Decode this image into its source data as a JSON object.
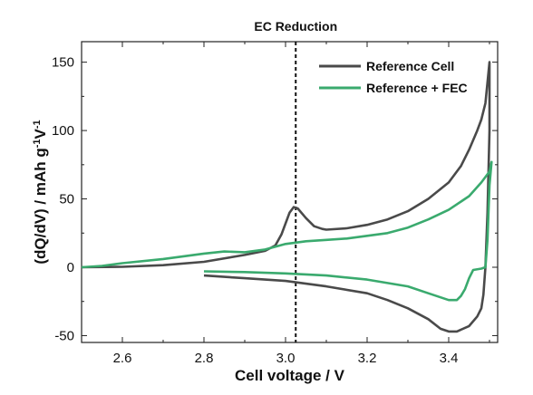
{
  "chart_data": {
    "type": "line",
    "xlabel": "Cell voltage / V",
    "ylabel_parts": [
      "(dQ/dV) / mAh g",
      "-1",
      "V",
      "-1"
    ],
    "xlim": [
      2.5,
      3.52
    ],
    "ylim": [
      -55,
      165
    ],
    "xticks": [
      2.6,
      2.8,
      3.0,
      3.2,
      3.4
    ],
    "yticks": [
      -50,
      0,
      50,
      100,
      150
    ],
    "grid": false,
    "legend_position": "top-right",
    "colors": {
      "reference": "#4a4a4a",
      "fec": "#3aaa6e"
    },
    "annotations": [
      {
        "text": "EC Reduction",
        "x": 3.025,
        "style": "dashed-vertical-line"
      }
    ],
    "series": [
      {
        "name": "Reference Cell",
        "color": "#4a4a4a",
        "points": [
          [
            2.5,
            0
          ],
          [
            2.6,
            0.3
          ],
          [
            2.7,
            1.5
          ],
          [
            2.8,
            4
          ],
          [
            2.9,
            9
          ],
          [
            2.95,
            12
          ],
          [
            2.975,
            16
          ],
          [
            2.99,
            24
          ],
          [
            3.0,
            32
          ],
          [
            3.01,
            40
          ],
          [
            3.02,
            44
          ],
          [
            3.03,
            43
          ],
          [
            3.05,
            36
          ],
          [
            3.07,
            30
          ],
          [
            3.09,
            28
          ],
          [
            3.1,
            27.5
          ],
          [
            3.15,
            28.5
          ],
          [
            3.2,
            31
          ],
          [
            3.25,
            35
          ],
          [
            3.3,
            41
          ],
          [
            3.35,
            50
          ],
          [
            3.4,
            62
          ],
          [
            3.43,
            74
          ],
          [
            3.45,
            86
          ],
          [
            3.47,
            100
          ],
          [
            3.48,
            108
          ],
          [
            3.49,
            120
          ],
          [
            3.5,
            150
          ],
          [
            3.5,
            100
          ],
          [
            3.495,
            40
          ],
          [
            3.49,
            0
          ],
          [
            3.485,
            -20
          ],
          [
            3.48,
            -30
          ],
          [
            3.47,
            -36
          ],
          [
            3.45,
            -43
          ],
          [
            3.42,
            -47
          ],
          [
            3.4,
            -47
          ],
          [
            3.38,
            -45
          ],
          [
            3.35,
            -38
          ],
          [
            3.3,
            -30
          ],
          [
            3.25,
            -24
          ],
          [
            3.2,
            -19
          ],
          [
            3.1,
            -14
          ],
          [
            3.0,
            -10
          ],
          [
            2.9,
            -8
          ],
          [
            2.8,
            -6
          ]
        ]
      },
      {
        "name": "Reference + FEC",
        "color": "#3aaa6e",
        "points": [
          [
            2.5,
            0
          ],
          [
            2.55,
            1
          ],
          [
            2.6,
            3
          ],
          [
            2.7,
            6
          ],
          [
            2.8,
            10
          ],
          [
            2.85,
            11.5
          ],
          [
            2.9,
            11
          ],
          [
            2.95,
            13
          ],
          [
            3.0,
            17
          ],
          [
            3.05,
            19
          ],
          [
            3.1,
            20
          ],
          [
            3.15,
            21
          ],
          [
            3.2,
            23
          ],
          [
            3.25,
            25
          ],
          [
            3.3,
            29
          ],
          [
            3.35,
            35
          ],
          [
            3.4,
            42
          ],
          [
            3.45,
            52
          ],
          [
            3.48,
            62
          ],
          [
            3.5,
            70
          ],
          [
            3.505,
            77
          ],
          [
            3.5,
            60
          ],
          [
            3.495,
            20
          ],
          [
            3.49,
            0
          ],
          [
            3.48,
            -1
          ],
          [
            3.46,
            -2
          ],
          [
            3.45,
            -8
          ],
          [
            3.44,
            -16
          ],
          [
            3.43,
            -21
          ],
          [
            3.42,
            -24
          ],
          [
            3.4,
            -24
          ],
          [
            3.35,
            -19
          ],
          [
            3.3,
            -14
          ],
          [
            3.2,
            -9
          ],
          [
            3.1,
            -6
          ],
          [
            3.0,
            -4.5
          ],
          [
            2.9,
            -3.5
          ],
          [
            2.8,
            -3
          ]
        ]
      }
    ]
  }
}
